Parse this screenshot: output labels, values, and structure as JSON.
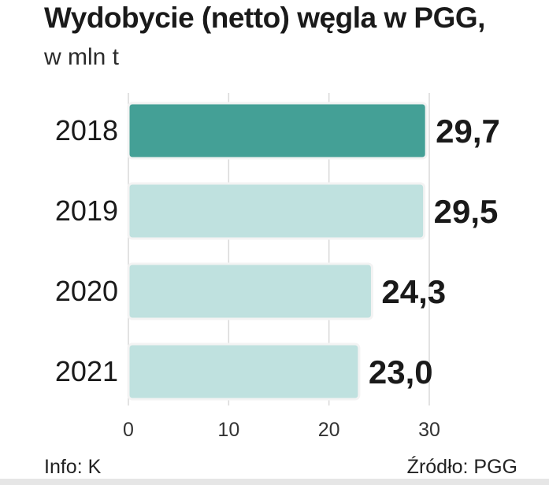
{
  "header": {
    "title": "Wydobycie (netto) węgla w PGG,",
    "subtitle": "w mln t"
  },
  "footer": {
    "info": "Info: K",
    "source": "Źródło: PGG"
  },
  "colors": {
    "highlight_bar": "#44a096",
    "bar": "#bfe1df",
    "bar_border": "#f3f3f3",
    "grid": "#d9d9d9",
    "text": "#1a1a1a"
  },
  "chart_data": {
    "type": "bar",
    "orientation": "horizontal",
    "categories": [
      "2018",
      "2019",
      "2020",
      "2021"
    ],
    "values": [
      29.7,
      29.5,
      24.3,
      23.0
    ],
    "value_labels": [
      "29,7",
      "29,5",
      "24,3",
      "23,0"
    ],
    "highlighted_category": "2018",
    "x_ticks": [
      0,
      10,
      20,
      30
    ],
    "xlim": [
      0,
      30
    ],
    "grid": true
  }
}
